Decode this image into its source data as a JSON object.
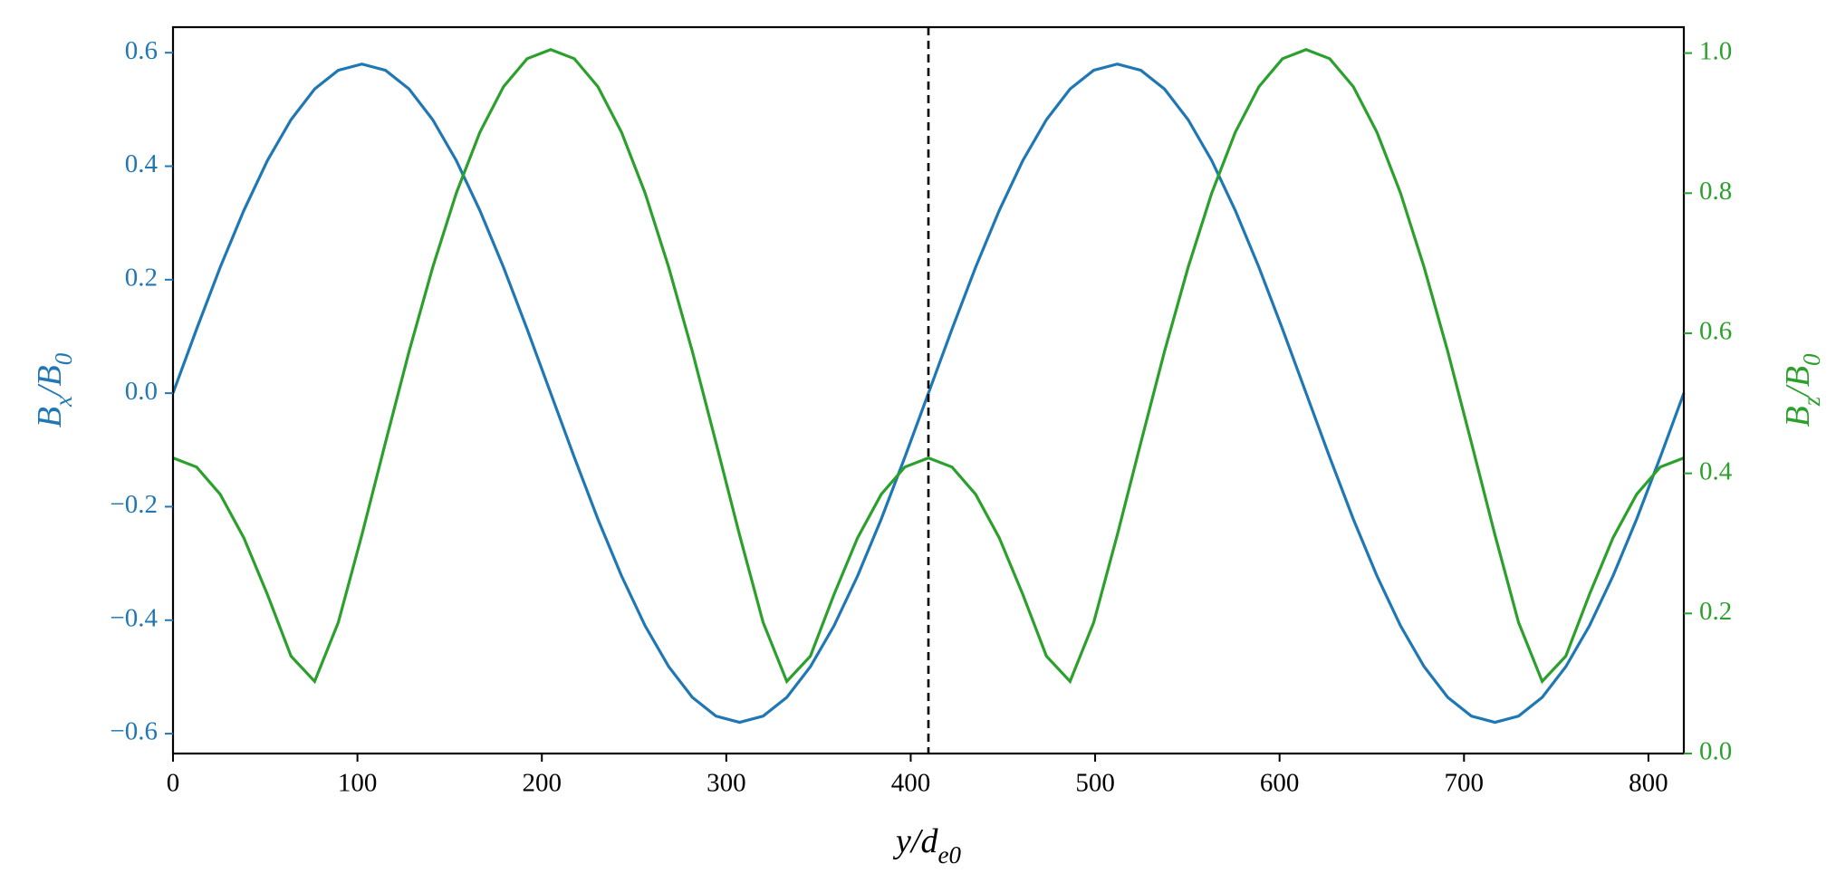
{
  "chart_data": {
    "type": "line",
    "xlabel": [
      "y/d",
      "e0"
    ],
    "ylabel": [
      "B",
      "x",
      "/B",
      "0"
    ],
    "y2label": [
      "B",
      "z",
      "/B",
      "0"
    ],
    "x": [
      0,
      12.8,
      25.6,
      38.4,
      51.2,
      64,
      76.8,
      89.6,
      102.4,
      115.2,
      128,
      140.8,
      153.6,
      166.4,
      179.2,
      192,
      204.8,
      217.6,
      230.4,
      243.2,
      256,
      268.8,
      281.6,
      294.4,
      307.2,
      320,
      332.8,
      345.6,
      358.4,
      371.2,
      384,
      396.8,
      409.6,
      422.4,
      435.2,
      448,
      460.8,
      473.6,
      486.4,
      499.2,
      512,
      524.8,
      537.6,
      550.4,
      563.2,
      576,
      588.8,
      601.6,
      614.4,
      627.2,
      640,
      652.8,
      665.6,
      678.4,
      691.2,
      704,
      716.8,
      729.6,
      742.4,
      755.2,
      768,
      780.8,
      793.6,
      806.4,
      819.2
    ],
    "series": [
      {
        "color": "#1f77b4",
        "axis": "y",
        "values": [
          0,
          0.113,
          0.222,
          0.322,
          0.41,
          0.482,
          0.536,
          0.569,
          0.58,
          0.569,
          0.536,
          0.482,
          0.41,
          0.322,
          0.222,
          0.113,
          0,
          -0.113,
          -0.222,
          -0.322,
          -0.41,
          -0.482,
          -0.536,
          -0.569,
          -0.58,
          -0.569,
          -0.536,
          -0.482,
          -0.41,
          -0.322,
          -0.222,
          -0.113,
          0,
          0.113,
          0.222,
          0.322,
          0.41,
          0.482,
          0.536,
          0.569,
          0.58,
          0.569,
          0.536,
          0.482,
          0.41,
          0.322,
          0.222,
          0.113,
          0,
          -0.113,
          -0.222,
          -0.322,
          -0.41,
          -0.482,
          -0.536,
          -0.569,
          -0.58,
          -0.569,
          -0.536,
          -0.482,
          -0.41,
          -0.322,
          -0.222,
          -0.113,
          0
        ]
      },
      {
        "color": "#2ca02c",
        "axis": "y2",
        "values": [
          0.422,
          0.409,
          0.37,
          0.308,
          0.227,
          0.139,
          0.103,
          0.187,
          0.312,
          0.444,
          0.574,
          0.694,
          0.8,
          0.887,
          0.952,
          0.992,
          1.005,
          0.992,
          0.952,
          0.887,
          0.8,
          0.694,
          0.574,
          0.444,
          0.312,
          0.187,
          0.103,
          0.139,
          0.227,
          0.308,
          0.37,
          0.409,
          0.422,
          0.409,
          0.37,
          0.308,
          0.227,
          0.139,
          0.103,
          0.187,
          0.312,
          0.444,
          0.574,
          0.694,
          0.8,
          0.887,
          0.952,
          0.992,
          1.005,
          0.992,
          0.952,
          0.887,
          0.8,
          0.694,
          0.574,
          0.444,
          0.312,
          0.187,
          0.103,
          0.139,
          0.227,
          0.308,
          0.37,
          0.409,
          0.422
        ]
      }
    ],
    "vline": 409.6,
    "xlim": [
      0,
      819.2
    ],
    "xticks": [
      0,
      100,
      200,
      300,
      400,
      500,
      600,
      700,
      800
    ],
    "ylim": [
      -0.635,
      0.645
    ],
    "yticks": [
      {
        "value": -0.6,
        "label": "−0.6"
      },
      {
        "value": -0.4,
        "label": "−0.4"
      },
      {
        "value": -0.2,
        "label": "−0.2"
      },
      {
        "value": 0,
        "label": "0.0"
      },
      {
        "value": 0.2,
        "label": "0.2"
      },
      {
        "value": 0.4,
        "label": "0.4"
      },
      {
        "value": 0.6,
        "label": "0.6"
      }
    ],
    "y2lim": [
      0,
      1.037
    ],
    "y2ticks": [
      {
        "value": 0,
        "label": "0.0"
      },
      {
        "value": 0.2,
        "label": "0.2"
      },
      {
        "value": 0.4,
        "label": "0.4"
      },
      {
        "value": 0.6,
        "label": "0.6"
      },
      {
        "value": 0.8,
        "label": "0.8"
      },
      {
        "value": 1,
        "label": "1.0"
      }
    ]
  }
}
